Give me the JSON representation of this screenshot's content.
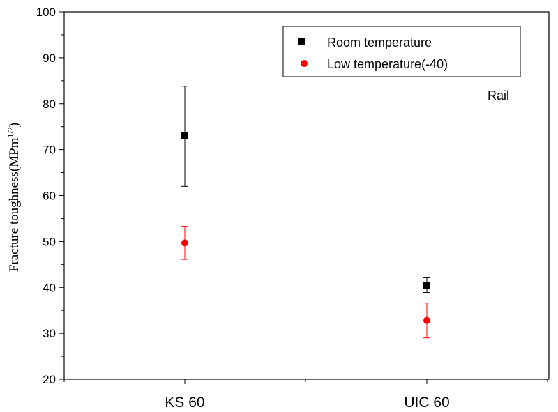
{
  "chart_data": {
    "type": "scatter",
    "categories": [
      "KS 60",
      "UIC 60"
    ],
    "ylabel_main": "Fracture toughness(MPm",
    "ylabel_sup": "1/2",
    "ylabel_close": ")",
    "ylim": [
      20,
      100
    ],
    "yticks": [
      20,
      30,
      40,
      50,
      60,
      70,
      80,
      90,
      100
    ],
    "annotation": "Rail",
    "legend_position": "top-right",
    "series": [
      {
        "name": "Room temperature",
        "marker": "square",
        "color": "#000000",
        "values": [
          73.0,
          40.5
        ],
        "err_low": [
          62.0,
          38.9
        ],
        "err_high": [
          83.8,
          42.1
        ]
      },
      {
        "name": "Low temperature(-40)",
        "marker": "circle",
        "color": "#ff0000",
        "values": [
          49.7,
          32.8
        ],
        "err_low": [
          46.1,
          29.0
        ],
        "err_high": [
          53.3,
          36.6
        ]
      }
    ]
  }
}
